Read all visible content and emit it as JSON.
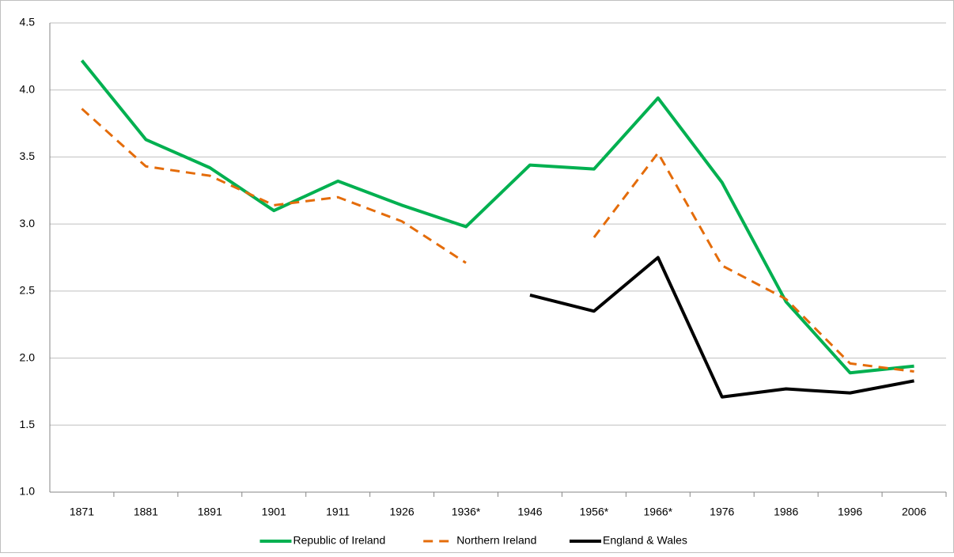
{
  "chart_data": {
    "type": "line",
    "categories": [
      "1871",
      "1881",
      "1891",
      "1901",
      "1911",
      "1926",
      "1936*",
      "1946",
      "1956*",
      "1966*",
      "1976",
      "1986",
      "1996",
      "2006"
    ],
    "series": [
      {
        "name": "Republic of Ireland",
        "color": "#00b050",
        "dashed": false,
        "values": [
          4.22,
          3.63,
          3.42,
          3.1,
          3.32,
          3.14,
          2.98,
          3.44,
          3.41,
          3.94,
          3.31,
          2.42,
          1.89,
          1.94
        ]
      },
      {
        "name": "Northern Ireland",
        "color": "#e46c0a",
        "dashed": true,
        "values": [
          3.86,
          3.43,
          3.36,
          3.14,
          3.2,
          3.02,
          2.71,
          null,
          2.9,
          3.53,
          2.69,
          2.44,
          1.96,
          1.9
        ]
      },
      {
        "name": "England & Wales",
        "color": "#000000",
        "dashed": false,
        "values": [
          null,
          null,
          null,
          null,
          null,
          null,
          null,
          2.47,
          2.35,
          2.75,
          1.71,
          1.77,
          1.74,
          1.83
        ]
      }
    ],
    "ylim": [
      1.0,
      4.5
    ],
    "yticks": [
      {
        "value": 1,
        "label": "1.0"
      },
      1.5,
      {
        "value": 2,
        "label": "2.0"
      },
      2.5,
      {
        "value": 3,
        "label": "3.0"
      },
      3.5,
      {
        "value": 4,
        "label": "4.0"
      },
      4.5
    ],
    "grid": true,
    "legend": "bottom"
  }
}
